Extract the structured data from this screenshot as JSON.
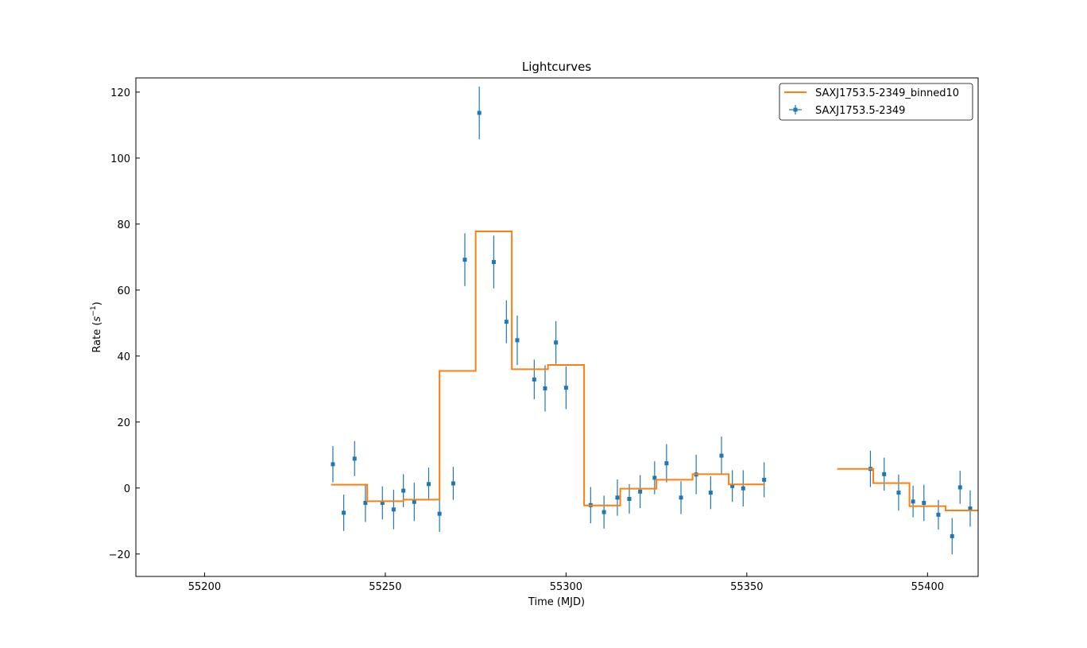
{
  "chart_data": {
    "type": "scatter",
    "title": "Lightcurves",
    "xlabel": "Time (MJD)",
    "ylabel_prefix": "Rate (",
    "ylabel_unit_base": "s",
    "ylabel_unit_exp": "−1",
    "ylabel_suffix": ")",
    "xlim": [
      55181,
      55414
    ],
    "ylim": [
      -26.8,
      124.3
    ],
    "x_ticks": [
      55200,
      55250,
      55300,
      55350,
      55400
    ],
    "y_ticks": [
      -20,
      0,
      20,
      40,
      60,
      80,
      100,
      120
    ],
    "x_tick_labels": [
      "55200",
      "55250",
      "55300",
      "55350",
      "55400"
    ],
    "y_tick_labels": [
      "−20",
      "0",
      "20",
      "40",
      "60",
      "80",
      "100",
      "120"
    ],
    "grid": false,
    "legend_position": "top-right",
    "series": [
      {
        "name": "SAXJ1753.5-2349",
        "kind": "errorbar",
        "color": "#1f77b4",
        "points": [
          {
            "x": 55235.5,
            "y": 7.2,
            "err": 5.5
          },
          {
            "x": 55238.5,
            "y": -7.5,
            "err": 5.5
          },
          {
            "x": 55241.5,
            "y": 8.9,
            "err": 5.3
          },
          {
            "x": 55244.5,
            "y": -4.5,
            "err": 5.8
          },
          {
            "x": 55249.2,
            "y": -4.5,
            "err": 5.0
          },
          {
            "x": 55252.3,
            "y": -6.5,
            "err": 6.0
          },
          {
            "x": 55255.0,
            "y": -0.8,
            "err": 5.0
          },
          {
            "x": 55258.0,
            "y": -4.2,
            "err": 5.8
          },
          {
            "x": 55262.0,
            "y": 1.2,
            "err": 5.0
          },
          {
            "x": 55265.0,
            "y": -7.8,
            "err": 5.5
          },
          {
            "x": 55268.8,
            "y": 1.4,
            "err": 5.0
          },
          {
            "x": 55272.0,
            "y": 69.2,
            "err": 8.0
          },
          {
            "x": 55276.0,
            "y": 113.7,
            "err": 8.0
          },
          {
            "x": 55280.0,
            "y": 68.5,
            "err": 8.0
          },
          {
            "x": 55283.5,
            "y": 50.4,
            "err": 6.5
          },
          {
            "x": 55286.5,
            "y": 44.8,
            "err": 7.5
          },
          {
            "x": 55291.2,
            "y": 32.9,
            "err": 6.0
          },
          {
            "x": 55294.2,
            "y": 30.2,
            "err": 7.0
          },
          {
            "x": 55297.2,
            "y": 44.1,
            "err": 6.5
          },
          {
            "x": 55300.0,
            "y": 30.4,
            "err": 6.5
          },
          {
            "x": 55306.8,
            "y": -5.2,
            "err": 5.5
          },
          {
            "x": 55310.5,
            "y": -7.3,
            "err": 5.0
          },
          {
            "x": 55314.2,
            "y": -2.9,
            "err": 5.5
          },
          {
            "x": 55317.5,
            "y": -3.3,
            "err": 4.5
          },
          {
            "x": 55320.5,
            "y": -1.1,
            "err": 5.0
          },
          {
            "x": 55324.5,
            "y": 3.1,
            "err": 5.0
          },
          {
            "x": 55327.8,
            "y": 7.5,
            "err": 5.8
          },
          {
            "x": 55331.8,
            "y": -2.9,
            "err": 5.0
          },
          {
            "x": 55336.0,
            "y": 4.1,
            "err": 6.0
          },
          {
            "x": 55340.0,
            "y": -1.4,
            "err": 5.0
          },
          {
            "x": 55343.0,
            "y": 9.8,
            "err": 5.8
          },
          {
            "x": 55346.0,
            "y": 0.6,
            "err": 4.8
          },
          {
            "x": 55349.0,
            "y": -0.1,
            "err": 5.5
          },
          {
            "x": 55354.8,
            "y": 2.5,
            "err": 5.3
          },
          {
            "x": 55384.2,
            "y": 5.8,
            "err": 5.5
          },
          {
            "x": 55388.0,
            "y": 4.2,
            "err": 5.0
          },
          {
            "x": 55392.0,
            "y": -1.4,
            "err": 5.5
          },
          {
            "x": 55396.0,
            "y": -4.1,
            "err": 4.8
          },
          {
            "x": 55399.0,
            "y": -4.5,
            "err": 5.5
          },
          {
            "x": 55403.0,
            "y": -8.1,
            "err": 4.5
          },
          {
            "x": 55406.8,
            "y": -14.6,
            "err": 5.5
          },
          {
            "x": 55409.0,
            "y": 0.2,
            "err": 5.0
          },
          {
            "x": 55411.8,
            "y": -6.2,
            "err": 5.5
          }
        ]
      },
      {
        "name": "SAXJ1753.5-2349_binned10",
        "kind": "step",
        "color": "#ff7f0e",
        "segments": [
          [
            [
              55235,
              1.0
            ],
            [
              55245,
              1.0
            ],
            [
              55245,
              -4.0
            ],
            [
              55255,
              -4.0
            ],
            [
              55255,
              -3.5
            ],
            [
              55265,
              -3.5
            ],
            [
              55265,
              35.5
            ],
            [
              55275,
              35.5
            ],
            [
              55275,
              77.8
            ],
            [
              55285,
              77.8
            ],
            [
              55285,
              36.0
            ],
            [
              55295,
              36.0
            ],
            [
              55295,
              37.3
            ],
            [
              55305,
              37.3
            ],
            [
              55305,
              -5.3
            ],
            [
              55315,
              -5.3
            ],
            [
              55315,
              -0.2
            ],
            [
              55325,
              -0.2
            ],
            [
              55325,
              2.5
            ],
            [
              55335,
              2.5
            ],
            [
              55335,
              4.2
            ],
            [
              55345,
              4.2
            ],
            [
              55345,
              1.1
            ],
            [
              55355,
              1.1
            ]
          ],
          [
            [
              55375,
              5.8
            ],
            [
              55385,
              5.8
            ],
            [
              55385,
              1.5
            ],
            [
              55395,
              1.5
            ],
            [
              55395,
              -5.5
            ],
            [
              55405,
              -5.5
            ],
            [
              55405,
              -6.8
            ],
            [
              55414,
              -6.8
            ]
          ]
        ]
      }
    ],
    "legend": {
      "entries": [
        "SAXJ1753.5-2349_binned10",
        "SAXJ1753.5-2349"
      ]
    }
  }
}
